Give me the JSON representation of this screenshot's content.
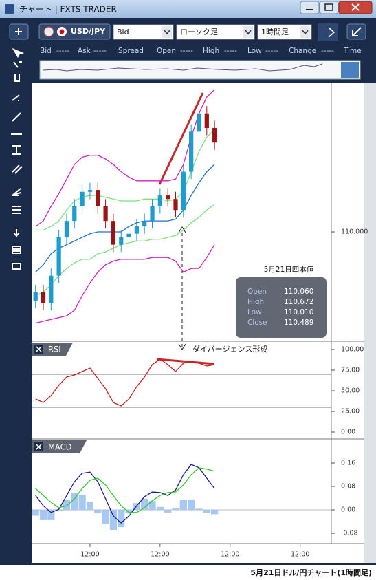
{
  "window": {
    "title": "チャート | FXTS TRADER"
  },
  "toolbar": {
    "symbol": "USD/JPY",
    "price_side": "Bid",
    "chart_type": "ローソク足",
    "timeframe": "1時間足"
  },
  "quote_header": [
    "Bid",
    "-----",
    "Ask",
    "-----",
    "Spread",
    "Open",
    "-----",
    "High",
    "-----",
    "Low",
    "-----",
    "Change",
    "-----",
    "Time"
  ],
  "quote_box": {
    "title": "5月21日四本値",
    "rows": [
      [
        "Open",
        "110.060"
      ],
      [
        "High",
        "110.672"
      ],
      [
        "Low",
        "110.010"
      ],
      [
        "Close",
        "110.489"
      ]
    ]
  },
  "annotation": "ダイバージェンス形成",
  "caption": "5月21日ドル/円チャート(1時間足)",
  "chart_data": [
    {
      "type": "candlestick",
      "x": [
        0,
        1,
        2,
        3,
        4,
        5,
        6,
        7,
        8,
        9,
        10,
        11,
        12,
        13,
        14,
        15,
        16,
        17,
        18,
        19,
        20,
        21,
        22,
        23
      ],
      "open": [
        109.62,
        109.67,
        109.61,
        109.76,
        109.97,
        110.06,
        110.14,
        110.22,
        110.23,
        110.14,
        110.06,
        109.93,
        109.97,
        109.99,
        110.03,
        110.06,
        110.14,
        110.2,
        110.18,
        110.12,
        110.33,
        110.55,
        110.65,
        110.57
      ],
      "high": [
        109.71,
        109.71,
        109.8,
        110.01,
        110.1,
        110.18,
        110.26,
        110.27,
        110.27,
        110.18,
        110.1,
        110.01,
        110.03,
        110.07,
        110.1,
        110.18,
        110.24,
        110.24,
        110.22,
        110.37,
        110.59,
        110.69,
        110.69,
        110.61
      ],
      "low": [
        109.58,
        109.57,
        109.57,
        109.72,
        109.93,
        110.02,
        110.1,
        110.18,
        110.1,
        110.02,
        109.89,
        109.89,
        109.93,
        109.95,
        109.99,
        110.02,
        110.1,
        110.14,
        110.08,
        110.08,
        110.29,
        110.51,
        110.53,
        110.45
      ],
      "close": [
        109.67,
        109.61,
        109.76,
        109.97,
        110.06,
        110.14,
        110.22,
        110.23,
        110.14,
        110.06,
        109.93,
        109.97,
        109.99,
        110.03,
        110.06,
        110.14,
        110.2,
        110.18,
        110.12,
        110.33,
        110.55,
        110.65,
        110.57,
        110.49
      ],
      "up_color": "#1c9ccf",
      "down_color": "#9e1414",
      "series": [
        {
          "color": "#d020c0",
          "values": [
            110.03,
            110.06,
            110.14,
            110.21,
            110.29,
            110.37,
            110.41,
            110.42,
            110.42,
            110.4,
            110.37,
            110.33,
            110.3,
            110.28,
            110.28,
            110.28,
            110.28,
            110.28,
            110.29,
            110.37,
            110.52,
            110.65,
            110.74,
            110.78
          ]
        },
        {
          "color": "#7de07d",
          "values": [
            110.01,
            110.01,
            110.03,
            110.06,
            110.12,
            110.17,
            110.19,
            110.2,
            110.2,
            110.19,
            110.18,
            110.17,
            110.17,
            110.17,
            110.18,
            110.18,
            110.18,
            110.17,
            110.18,
            110.22,
            110.33,
            110.44,
            110.52,
            110.56
          ]
        },
        {
          "color": "#1f6fc8",
          "values": [
            109.78,
            109.82,
            109.88,
            109.91,
            109.93,
            109.95,
            109.97,
            109.99,
            110.0,
            110.0,
            110.0,
            110.0,
            110.03,
            110.05,
            110.06,
            110.06,
            110.06,
            110.06,
            110.07,
            110.12,
            110.2,
            110.27,
            110.33,
            110.37
          ]
        },
        {
          "color": "#7de07d",
          "values": [
            109.65,
            109.67,
            109.71,
            109.76,
            109.8,
            109.83,
            109.85,
            109.85,
            109.88,
            109.89,
            109.91,
            109.93,
            109.94,
            109.95,
            109.95,
            109.96,
            109.96,
            109.97,
            109.98,
            110.01,
            110.05,
            110.08,
            110.12,
            110.15
          ]
        },
        {
          "color": "#d020c0",
          "values": [
            109.5,
            109.51,
            109.52,
            109.53,
            109.54,
            109.57,
            109.65,
            109.72,
            109.78,
            109.82,
            109.84,
            109.85,
            109.85,
            109.85,
            109.85,
            109.86,
            109.86,
            109.86,
            109.84,
            109.78,
            109.8,
            109.8,
            109.86,
            109.93
          ]
        }
      ],
      "xlim": [
        -0.5,
        38
      ],
      "ylim": [
        109.404,
        110.819
      ],
      "yticks": [
        {
          "value": 110,
          "label": "110.000"
        }
      ]
    },
    {
      "type": "line",
      "title": "RSI",
      "x": [
        0,
        1,
        2,
        3,
        4,
        5,
        6,
        7,
        8,
        9,
        10,
        11,
        12,
        13,
        14,
        15,
        16,
        17,
        18,
        19,
        20,
        21,
        22,
        23
      ],
      "values": [
        40,
        35.8,
        44.2,
        56.7,
        66.7,
        69.2,
        73.3,
        77.5,
        65,
        52.5,
        35.8,
        31.7,
        40,
        55,
        66.7,
        81.7,
        88.3,
        81.7,
        73.3,
        83.3,
        85.8,
        83.3,
        80,
        81.7
      ],
      "color": "#c82020",
      "levels": [
        70,
        30
      ],
      "xlim": [
        -0.5,
        38
      ],
      "ylim": [
        -6,
        107
      ],
      "yticks": [
        {
          "value": 100,
          "label": "100.00"
        },
        {
          "value": 75,
          "label": "75.00"
        },
        {
          "value": 50,
          "label": "50.00"
        },
        {
          "value": 25,
          "label": "25.00"
        },
        {
          "value": 0,
          "label": "0.00"
        }
      ]
    },
    {
      "type": "line",
      "title": "MACD",
      "x": [
        0,
        1,
        2,
        3,
        4,
        5,
        6,
        7,
        8,
        9,
        10,
        11,
        12,
        13,
        14,
        15,
        16,
        17,
        18,
        19,
        20,
        21,
        22,
        23
      ],
      "series": [
        {
          "type": "bar",
          "color": "#a8c8f4",
          "values": [
            -0.02,
            -0.035,
            -0.035,
            -0.005,
            0.035,
            0.058,
            0.052,
            0.028,
            -0.012,
            -0.047,
            -0.07,
            -0.059,
            -0.012,
            0.023,
            0.038,
            0.03,
            0.01,
            -0.01,
            0.007,
            0.035,
            0.035,
            0.004,
            -0.01,
            -0.015
          ]
        },
        {
          "color": "#1c1c8c",
          "values": [
            0.049,
            0.014,
            -0.009,
            0.002,
            0.049,
            0.096,
            0.125,
            0.129,
            0.096,
            0.038,
            -0.021,
            -0.045,
            -0.021,
            0.014,
            0.045,
            0.061,
            0.059,
            0.049,
            0.068,
            0.12,
            0.155,
            0.144,
            0.108,
            0.073
          ]
        },
        {
          "color": "#2ec82e",
          "values": [
            0.073,
            0.049,
            0.026,
            0.007,
            0.014,
            0.038,
            0.073,
            0.101,
            0.108,
            0.085,
            0.049,
            0.014,
            -0.009,
            -0.009,
            0.007,
            0.031,
            0.049,
            0.059,
            0.061,
            0.085,
            0.12,
            0.144,
            0.139,
            0.132
          ]
        }
      ],
      "zero_line": true,
      "xlim": [
        -0.5,
        38
      ],
      "ylim": [
        -0.115,
        0.238
      ],
      "yticks": [
        0.16,
        0.08,
        {
          "value": 0,
          "label": "0.00"
        },
        -0.08
      ],
      "xticks": [
        {
          "value": 7,
          "label": "12:00"
        },
        {
          "value": 16,
          "label": "12:00"
        },
        {
          "value": 25,
          "label": "12:00"
        },
        {
          "value": 34,
          "label": "12:00"
        }
      ]
    }
  ]
}
